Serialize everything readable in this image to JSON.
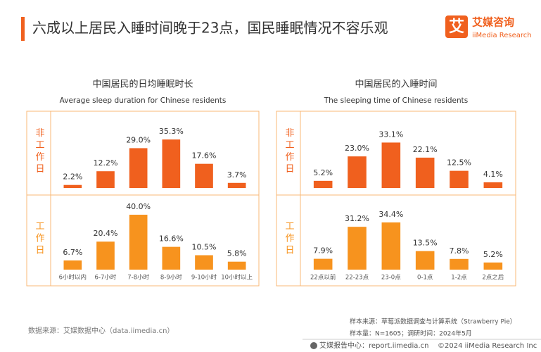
{
  "header": {
    "title": "六成以上居民入睡时间晚于23点，国民睡眠情况不容乐观",
    "logo_icon": "艾",
    "logo_name": "艾媒咨询",
    "logo_sub": "iiMedia Research"
  },
  "chart_data": [
    {
      "type": "bar",
      "title": "中国居民的日均睡眠时长",
      "subtitle": "Average sleep duration for Chinese residents",
      "categories": [
        "6小时以内",
        "6-7小时",
        "7-8小时",
        "8-9小时",
        "9-10小时",
        "10小时以上"
      ],
      "series": [
        {
          "name": "非工作日",
          "color": "#f0601e",
          "values": [
            2.2,
            12.2,
            29.0,
            35.3,
            17.6,
            3.7
          ],
          "value_labels": [
            "2.2%",
            "12.2%",
            "29.0%",
            "35.3%",
            "17.6%",
            "3.7%"
          ]
        },
        {
          "name": "工作日",
          "color": "#f7931e",
          "values": [
            6.7,
            20.4,
            40.0,
            16.6,
            10.5,
            5.8
          ],
          "value_labels": [
            "6.7%",
            "20.4%",
            "40.0%",
            "16.6%",
            "10.5%",
            "5.8%"
          ]
        }
      ]
    },
    {
      "type": "bar",
      "title": "中国居民的入睡时间",
      "subtitle": "The sleeping time of Chinese residents",
      "categories": [
        "22点以前",
        "22-23点",
        "23-0点",
        "0-1点",
        "1-2点",
        "2点之后"
      ],
      "series": [
        {
          "name": "非工作日",
          "color": "#f0601e",
          "values": [
            5.2,
            23.0,
            33.1,
            22.1,
            12.5,
            4.1
          ],
          "value_labels": [
            "5.2%",
            "23.0%",
            "33.1%",
            "22.1%",
            "12.5%",
            "4.1%"
          ]
        },
        {
          "name": "工作日",
          "color": "#f7931e",
          "values": [
            7.9,
            31.2,
            34.4,
            13.5,
            7.8,
            5.2
          ],
          "value_labels": [
            "7.9%",
            "31.2%",
            "34.4%",
            "13.5%",
            "7.8%",
            "5.2%"
          ]
        }
      ]
    }
  ],
  "footer": {
    "data_source": "数据来源：艾媒数据中心（data.iimedia.cn）",
    "sample_source": "样本来源：草莓派数据调查与计算系统（Strawberry Pie）",
    "sample_info": "样本量：N=1605；调研时间：2024年5月",
    "report_center": "艾媒报告中心：report.iimedia.cn",
    "copyright": "©2024  iiMedia Research Inc"
  }
}
